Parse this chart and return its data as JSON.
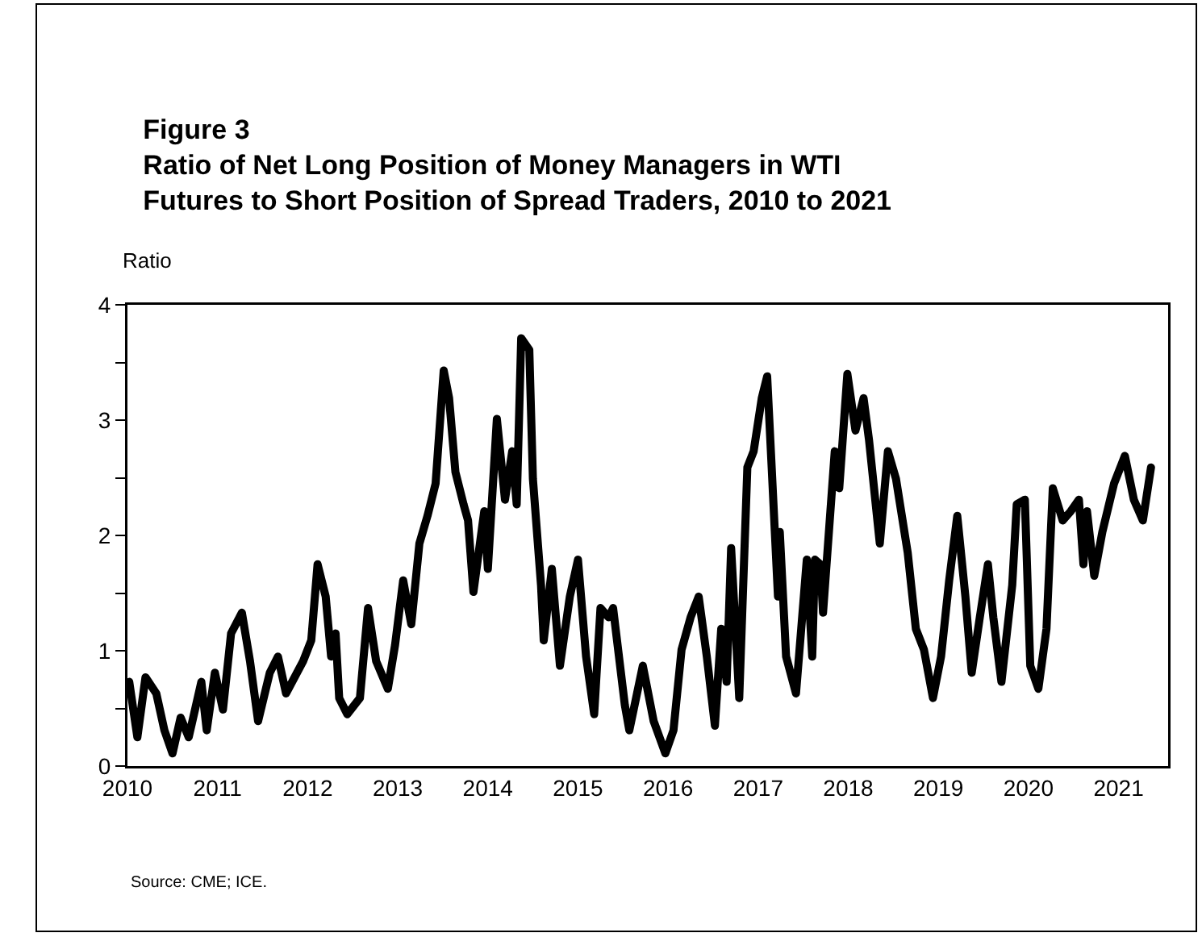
{
  "chart_data": {
    "type": "line",
    "title": "Figure 3\nRatio of Net Long Position of Money Managers in WTI\nFutures to Short Position of Spread Traders, 2010 to 2021",
    "ylabel": "Ratio",
    "annotations": [
      "Source: CME; ICE."
    ],
    "x": [
      2010.02,
      2010.11,
      2010.2,
      2010.32,
      2010.41,
      2010.5,
      2010.59,
      2010.68,
      2010.82,
      2010.88,
      2010.97,
      2011.06,
      2011.15,
      2011.27,
      2011.36,
      2011.45,
      2011.58,
      2011.67,
      2011.76,
      2011.95,
      2012.04,
      2012.11,
      2012.2,
      2012.26,
      2012.31,
      2012.35,
      2012.44,
      2012.58,
      2012.67,
      2012.76,
      2012.89,
      2012.97,
      2013.06,
      2013.15,
      2013.24,
      2013.33,
      2013.42,
      2013.51,
      2013.57,
      2013.64,
      2013.73,
      2013.78,
      2013.84,
      2013.96,
      2014.0,
      2014.1,
      2014.19,
      2014.27,
      2014.32,
      2014.37,
      2014.46,
      2014.5,
      2014.59,
      2014.62,
      2014.71,
      2014.8,
      2014.91,
      2015.0,
      2015.09,
      2015.18,
      2015.25,
      2015.34,
      2015.39,
      2015.52,
      2015.57,
      2015.72,
      2015.84,
      2015.97,
      2016.06,
      2016.15,
      2016.25,
      2016.34,
      2016.43,
      2016.52,
      2016.59,
      2016.65,
      2016.7,
      2016.79,
      2016.88,
      2016.95,
      2017.04,
      2017.1,
      2017.15,
      2017.22,
      2017.24,
      2017.31,
      2017.42,
      2017.54,
      2017.6,
      2017.63,
      2017.69,
      2017.72,
      2017.85,
      2017.9,
      2017.99,
      2018.08,
      2018.17,
      2018.23,
      2018.35,
      2018.44,
      2018.53,
      2018.66,
      2018.75,
      2018.84,
      2018.94,
      2019.03,
      2019.12,
      2019.21,
      2019.3,
      2019.37,
      2019.46,
      2019.55,
      2019.61,
      2019.7,
      2019.82,
      2019.87,
      2019.96,
      2020.02,
      2020.11,
      2020.2,
      2020.27,
      2020.38,
      2020.47,
      2020.56,
      2020.61,
      2020.65,
      2020.73,
      2020.82,
      2020.95,
      2021.07,
      2021.17,
      2021.27,
      2021.36
    ],
    "series": [
      {
        "color": "#000000",
        "values": [
          0.73,
          0.25,
          0.77,
          0.63,
          0.31,
          0.11,
          0.42,
          0.25,
          0.73,
          0.31,
          0.81,
          0.49,
          1.15,
          1.33,
          0.91,
          0.39,
          0.81,
          0.95,
          0.63,
          0.91,
          1.09,
          1.75,
          1.47,
          0.95,
          1.15,
          0.59,
          0.45,
          0.59,
          1.37,
          0.91,
          0.67,
          1.05,
          1.61,
          1.23,
          1.93,
          2.17,
          2.45,
          3.43,
          3.19,
          2.55,
          2.27,
          2.13,
          1.51,
          2.21,
          1.71,
          3.01,
          2.31,
          2.73,
          2.27,
          3.71,
          3.61,
          2.49,
          1.57,
          1.09,
          1.71,
          0.87,
          1.47,
          1.79,
          0.95,
          0.45,
          1.37,
          1.29,
          1.37,
          0.53,
          0.31,
          0.87,
          0.39,
          0.11,
          0.31,
          1.01,
          1.29,
          1.47,
          0.95,
          0.35,
          1.19,
          0.73,
          1.89,
          0.59,
          2.59,
          2.73,
          3.19,
          3.38,
          2.59,
          1.47,
          2.03,
          0.95,
          0.63,
          1.79,
          0.95,
          1.79,
          1.75,
          1.33,
          2.73,
          2.41,
          3.4,
          2.91,
          3.19,
          2.83,
          1.93,
          2.73,
          2.49,
          1.85,
          1.19,
          1.01,
          0.59,
          0.95,
          1.61,
          2.17,
          1.47,
          0.81,
          1.29,
          1.75,
          1.29,
          0.73,
          1.57,
          2.27,
          2.31,
          0.87,
          0.67,
          1.19,
          2.41,
          2.13,
          2.21,
          2.31,
          1.75,
          2.21,
          1.65,
          2.03,
          2.45,
          2.69,
          2.31,
          2.13,
          2.59
        ]
      }
    ],
    "xlim": [
      2010,
      2021.55
    ],
    "xticks": [
      2010,
      2011,
      2012,
      2013,
      2014,
      2015,
      2016,
      2017,
      2018,
      2019,
      2020,
      2021
    ],
    "ylim": [
      0,
      4
    ],
    "yticks": [
      0,
      {
        "value": 0.5,
        "label": null
      },
      1,
      {
        "value": 1.5,
        "label": null
      },
      2,
      {
        "value": 2.5,
        "label": null
      },
      3,
      {
        "value": 3.5,
        "label": null
      },
      4
    ],
    "marker": "none",
    "line_style": "solid"
  }
}
